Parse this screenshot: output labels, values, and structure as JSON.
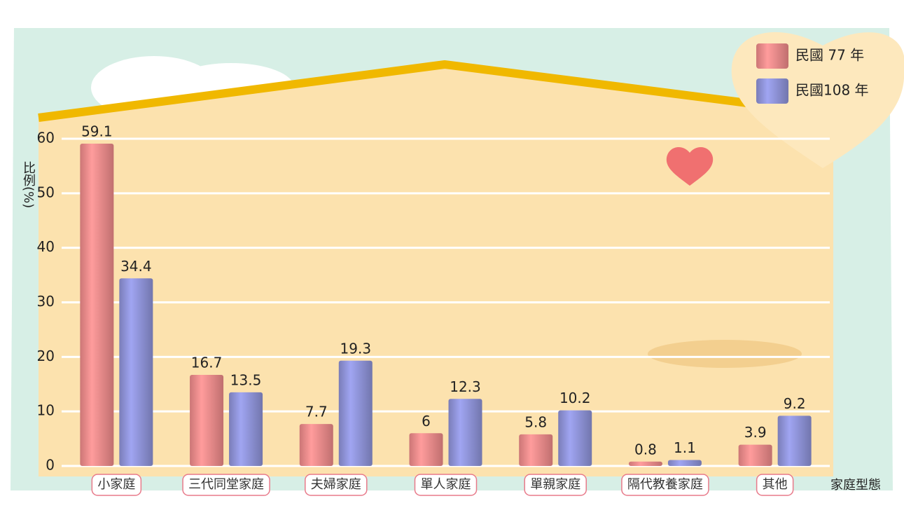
{
  "chart_data": {
    "type": "bar",
    "categories": [
      "小家庭",
      "三代同堂家庭",
      "夫婦家庭",
      "單人家庭",
      "單親家庭",
      "隔代教養家庭",
      "其他"
    ],
    "series": [
      {
        "name": "民國 77 年",
        "color": "#f08b8b",
        "values": [
          59.1,
          16.7,
          7.7,
          6,
          5.8,
          0.8,
          3.9
        ]
      },
      {
        "name": "民國108 年",
        "color": "#8f93d8",
        "values": [
          34.4,
          13.5,
          19.3,
          12.3,
          10.2,
          1.1,
          9.2
        ]
      }
    ],
    "y_axis_label": "比例(%)",
    "x_axis_label": "家庭型態",
    "ylim": [
      0,
      60
    ],
    "yticks": [
      0,
      10,
      20,
      30,
      40,
      50,
      60
    ],
    "grid": true
  }
}
